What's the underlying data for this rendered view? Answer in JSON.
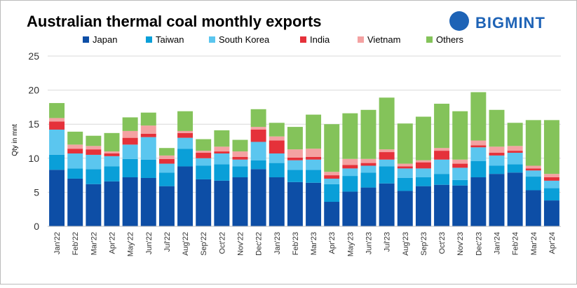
{
  "brand": "BIGMINT",
  "chart_data": {
    "type": "stacked_bar",
    "title": "Australian thermal coal monthly exports",
    "y_label": "Qty in mnt",
    "categories": [
      "Jan'22",
      "Feb'22",
      "Mar'22",
      "Apr'22",
      "May'22",
      "Jun'22",
      "Jul'22",
      "Aug'22",
      "Sep'22",
      "Oct'22",
      "Nov'22",
      "Dec'22",
      "Jan'23",
      "Feb'23",
      "Mar'23",
      "Apr'23",
      "May'23",
      "Jun'23",
      "Jul'23",
      "Aug'23",
      "Sep'23",
      "Oct'23",
      "Nov'23",
      "Dec'23",
      "Jan'24",
      "Feb'24",
      "Mar'24",
      "Apr'24"
    ],
    "series": [
      {
        "name": "Japan",
        "color": "#0d4ea6",
        "values": [
          8.3,
          7.0,
          6.2,
          6.6,
          7.2,
          7.1,
          5.9,
          8.8,
          6.9,
          6.7,
          7.2,
          8.4,
          7.2,
          6.5,
          6.4,
          3.6,
          5.1,
          5.7,
          6.3,
          5.2,
          5.9,
          6.1,
          6.0,
          7.2,
          7.7,
          7.9,
          5.3,
          3.8
        ]
      },
      {
        "name": "Taiwan",
        "color": "#0a9fd8",
        "values": [
          2.2,
          1.5,
          2.2,
          2.2,
          2.7,
          2.7,
          2.0,
          2.6,
          2.0,
          2.4,
          1.6,
          1.3,
          2.1,
          1.8,
          1.9,
          2.6,
          2.3,
          2.2,
          2.5,
          1.9,
          1.3,
          1.6,
          0.8,
          2.4,
          1.2,
          1.2,
          2.0,
          1.8
        ]
      },
      {
        "name": "South Korea",
        "color": "#5bc6ef",
        "values": [
          3.7,
          2.2,
          2.1,
          1.5,
          2.1,
          3.3,
          1.3,
          1.6,
          1.1,
          1.6,
          1.0,
          2.7,
          1.4,
          1.4,
          1.5,
          0.8,
          1.1,
          1.0,
          1.0,
          1.4,
          1.3,
          2.1,
          1.8,
          2.0,
          1.5,
          1.7,
          0.9,
          1.1
        ]
      },
      {
        "name": "India",
        "color": "#e5313a",
        "values": [
          1.2,
          0.7,
          0.8,
          0.4,
          1.0,
          0.5,
          0.7,
          0.7,
          0.8,
          0.3,
          0.4,
          1.8,
          1.9,
          0.4,
          0.4,
          0.5,
          0.5,
          0.4,
          1.1,
          0.3,
          0.9,
          1.3,
          0.6,
          0.3,
          0.4,
          0.3,
          0.3,
          0.5
        ]
      },
      {
        "name": "Vietnam",
        "color": "#f4a2a2",
        "values": [
          0.5,
          0.6,
          0.5,
          0.3,
          1.0,
          1.2,
          0.5,
          0.3,
          0.3,
          0.7,
          0.8,
          0.4,
          0.6,
          1.2,
          1.2,
          0.5,
          0.9,
          0.6,
          0.4,
          0.4,
          0.3,
          0.4,
          0.6,
          0.7,
          0.9,
          0.7,
          0.4,
          0.5
        ]
      },
      {
        "name": "Others",
        "color": "#84c35a",
        "values": [
          2.2,
          1.9,
          1.5,
          2.7,
          2.0,
          1.9,
          1.1,
          2.9,
          1.7,
          2.4,
          1.7,
          2.6,
          2.0,
          3.3,
          5.0,
          7.0,
          6.7,
          7.2,
          7.6,
          5.9,
          6.4,
          6.5,
          7.1,
          7.1,
          5.4,
          3.4,
          6.7,
          7.9
        ]
      }
    ],
    "ylim": [
      0,
      25
    ],
    "yticks": [
      0,
      5,
      10,
      15,
      20,
      25
    ],
    "grid": true
  }
}
